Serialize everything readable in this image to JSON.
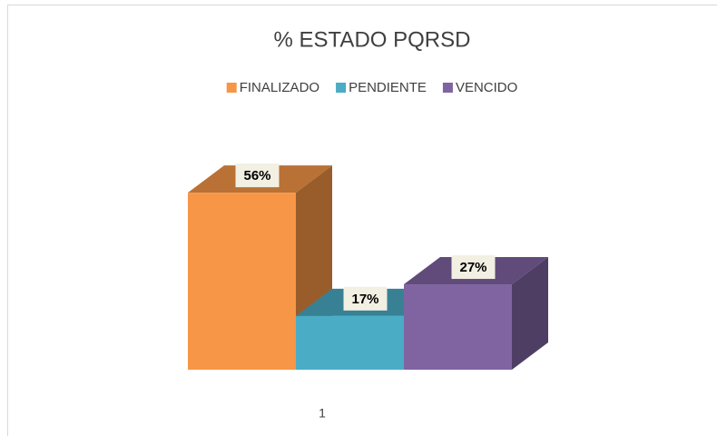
{
  "chart_data": {
    "type": "bar3d",
    "title": "% ESTADO PQRSD",
    "legend": "top",
    "categories": [
      "1"
    ],
    "series": [
      {
        "name": "FINALIZADO",
        "color": "#f79646",
        "values": [
          56
        ],
        "value_labels": [
          "56%"
        ]
      },
      {
        "name": "PENDIENTE",
        "color": "#4bacc6",
        "values": [
          17
        ],
        "value_labels": [
          "17%"
        ]
      },
      {
        "name": "VENCIDO",
        "color": "#8064a2",
        "values": [
          27
        ],
        "value_labels": [
          "27%"
        ]
      }
    ]
  }
}
